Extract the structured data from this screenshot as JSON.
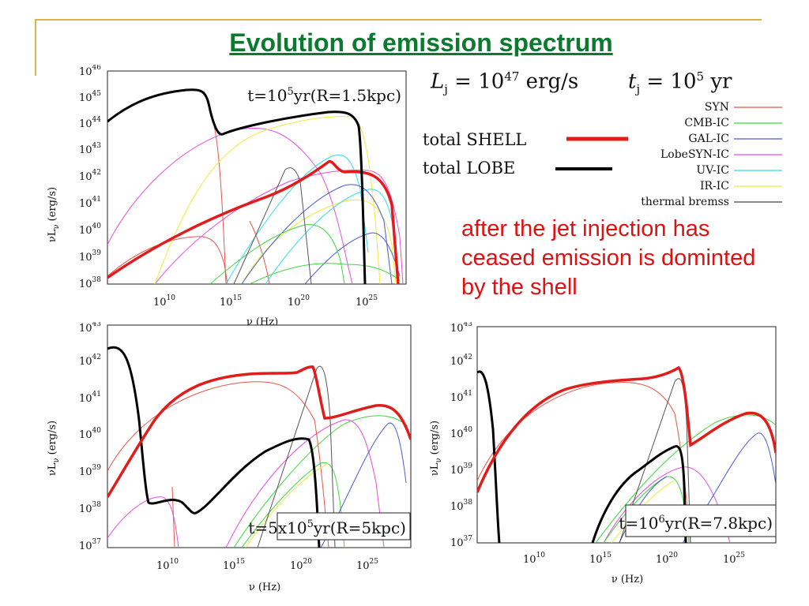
{
  "title": "Evolution of emission spectrum",
  "parameters": {
    "lj_symbol": "L",
    "lj_sub": "j",
    "lj_eq": " = 10",
    "lj_exp": "47",
    "lj_unit": " erg/s",
    "tj_symbol": "t",
    "tj_sub": "j",
    "tj_eq": " = 10",
    "tj_exp": "5",
    "tj_unit": " yr"
  },
  "legend": {
    "totals": [
      {
        "label": "total SHELL",
        "color": "#e21b1b"
      },
      {
        "label": "total LOBE",
        "color": "#000000"
      }
    ],
    "components": [
      {
        "label": "SYN",
        "color": "#e8554a"
      },
      {
        "label": "CMB-IC",
        "color": "#3bd93b"
      },
      {
        "label": "GAL-IC",
        "color": "#4a5bd0"
      },
      {
        "label": "LobeSYN-IC",
        "color": "#e84de0"
      },
      {
        "label": "UV-IC",
        "color": "#33dbe8"
      },
      {
        "label": "IR-IC",
        "color": "#ecec3a"
      },
      {
        "label": "thermal bremss",
        "color": "#444444"
      }
    ]
  },
  "annotation": "after the jet injection has ceased emission is dominted by the shell",
  "chart_data": [
    {
      "type": "line",
      "panel": "top-left",
      "annotation_time": "t=10",
      "annotation_time_exp": "5",
      "annotation_rest": "yr(R=1.5kpc)",
      "xlabel": "ν (Hz)",
      "ylabel": "νLν (erg/s)",
      "xscale": "log",
      "yscale": "log",
      "x_ticks": [
        "10",
        "15",
        "20",
        "25"
      ],
      "y_ticks": [
        "38",
        "39",
        "40",
        "41",
        "42",
        "43",
        "44",
        "45",
        "46"
      ],
      "xlim": [
        1000000.0,
        1e+28
      ],
      "ylim": [
        1e+38,
        1e+46
      ]
    },
    {
      "type": "line",
      "panel": "bottom-left",
      "annotation_time": "t=5x10",
      "annotation_time_exp": "5",
      "annotation_rest": "yr(R=5kpc)",
      "xlabel": "ν (Hz)",
      "ylabel": "νLν (erg/s)",
      "xscale": "log",
      "yscale": "log",
      "x_ticks": [
        "10",
        "15",
        "20",
        "25"
      ],
      "y_ticks": [
        "37",
        "38",
        "39",
        "40",
        "41",
        "42",
        "43"
      ],
      "xlim": [
        1000000.0,
        1e+28
      ],
      "ylim": [
        1e+37,
        1e+43
      ]
    },
    {
      "type": "line",
      "panel": "bottom-right",
      "annotation_time": "t=10",
      "annotation_time_exp": "6",
      "annotation_rest": "yr(R=7.8kpc)",
      "xlabel": "ν (Hz)",
      "ylabel": "νLν (erg/s)",
      "xscale": "log",
      "yscale": "log",
      "x_ticks": [
        "10",
        "15",
        "20",
        "25"
      ],
      "y_ticks": [
        "37",
        "38",
        "39",
        "40",
        "41",
        "42",
        "43"
      ],
      "xlim": [
        1000000.0,
        1e+28
      ],
      "ylim": [
        1e+37,
        1e+43
      ]
    }
  ]
}
